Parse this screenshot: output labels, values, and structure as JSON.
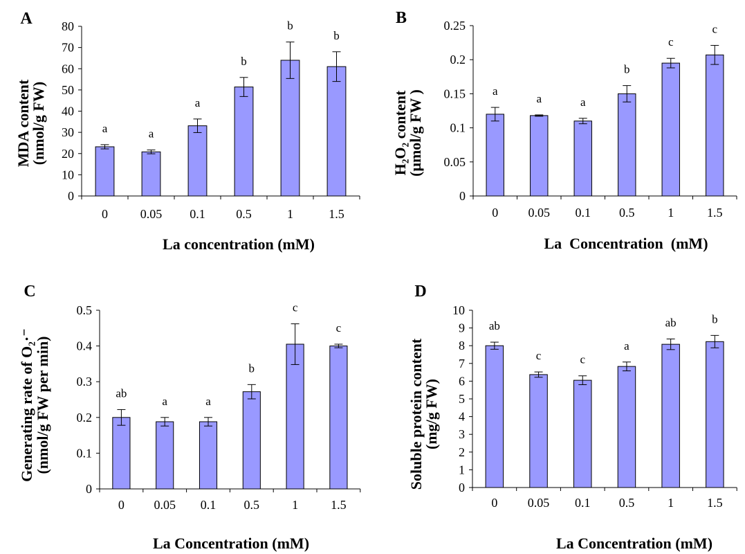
{
  "colors": {
    "background": "#ffffff",
    "bar_fill": "#9999ff",
    "bar_edge": "#000000",
    "error_bar": "#000000"
  },
  "chart_data": [
    {
      "panel": "A",
      "type": "bar",
      "categories": [
        "0",
        "0.05",
        "0.1",
        "0.5",
        "1",
        "1.5"
      ],
      "values": [
        23.2,
        20.8,
        33.1,
        51.4,
        64.0,
        61.0
      ],
      "errors": [
        1.0,
        0.9,
        3.2,
        4.5,
        8.6,
        7.0
      ],
      "significance": [
        "a",
        "a",
        "a",
        "b",
        "b",
        "b"
      ],
      "ylabel": [
        "MDA content",
        "(nmol/g FW)"
      ],
      "xlabel": "La concentration (mM)",
      "ylim": [
        0,
        80
      ],
      "yticks": [
        "0",
        "10",
        "20",
        "30",
        "40",
        "50",
        "60",
        "70",
        "80"
      ],
      "grid": false
    },
    {
      "panel": "B",
      "type": "bar",
      "categories": [
        "0",
        "0.05",
        "0.1",
        "0.5",
        "1",
        "1.5"
      ],
      "values": [
        0.12,
        0.118,
        0.11,
        0.15,
        0.195,
        0.207
      ],
      "errors": [
        0.01,
        0.001,
        0.004,
        0.012,
        0.007,
        0.014
      ],
      "significance": [
        "a",
        "a",
        "a",
        "b",
        "c",
        "c"
      ],
      "ylabel": [
        "H₂O₂ content",
        "(μmol/g FW )"
      ],
      "xlabel": "La  Concentration  (mM)",
      "ylim": [
        0,
        0.25
      ],
      "yticks": [
        "0",
        "0.05",
        "0.1",
        "0.15",
        "0.2",
        "0.25"
      ],
      "grid": false
    },
    {
      "panel": "C",
      "type": "bar",
      "categories": [
        "0",
        "0.05",
        "0.1",
        "0.5",
        "1",
        "1.5"
      ],
      "values": [
        0.2,
        0.188,
        0.188,
        0.272,
        0.405,
        0.4
      ],
      "errors": [
        0.022,
        0.012,
        0.012,
        0.02,
        0.057,
        0.005
      ],
      "significance": [
        "ab",
        "a",
        "a",
        "b",
        "c",
        "c"
      ],
      "ylabel": [
        "Generating rate of O₂·⁻",
        "(nmol/g FW per min)"
      ],
      "xlabel": "La Concentration (mM)",
      "ylim": [
        0,
        0.5
      ],
      "yticks": [
        "0",
        "0.1",
        "0.2",
        "0.3",
        "0.4",
        "0.5"
      ],
      "grid": false
    },
    {
      "panel": "D",
      "type": "bar",
      "categories": [
        "0",
        "0.05",
        "0.1",
        "0.5",
        "1",
        "1.5"
      ],
      "values": [
        8.0,
        6.37,
        6.05,
        6.83,
        8.08,
        8.23
      ],
      "errors": [
        0.2,
        0.15,
        0.25,
        0.25,
        0.3,
        0.35
      ],
      "significance": [
        "ab",
        "c",
        "c",
        "a",
        "ab",
        "b"
      ],
      "ylabel": [
        "Soluble protein content",
        "(mg/g FW)"
      ],
      "xlabel": "La Concentration (mM)",
      "ylim": [
        0,
        10
      ],
      "yticks": [
        "0",
        "1",
        "2",
        "3",
        "4",
        "5",
        "6",
        "7",
        "8",
        "9",
        "10"
      ],
      "grid": false
    }
  ]
}
